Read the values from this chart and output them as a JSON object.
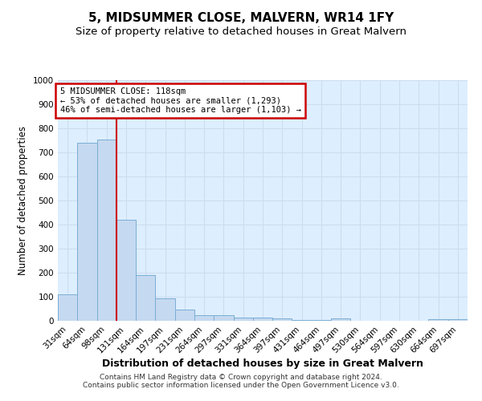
{
  "title": "5, MIDSUMMER CLOSE, MALVERN, WR14 1FY",
  "subtitle": "Size of property relative to detached houses in Great Malvern",
  "xlabel": "Distribution of detached houses by size in Great Malvern",
  "ylabel": "Number of detached properties",
  "categories": [
    "31sqm",
    "64sqm",
    "98sqm",
    "131sqm",
    "164sqm",
    "197sqm",
    "231sqm",
    "264sqm",
    "297sqm",
    "331sqm",
    "364sqm",
    "397sqm",
    "431sqm",
    "464sqm",
    "497sqm",
    "530sqm",
    "564sqm",
    "597sqm",
    "630sqm",
    "664sqm",
    "697sqm"
  ],
  "values": [
    110,
    740,
    755,
    420,
    190,
    95,
    46,
    22,
    22,
    15,
    15,
    10,
    5,
    5,
    10,
    0,
    0,
    0,
    0,
    8,
    8
  ],
  "bar_color": "#c5d9f0",
  "bar_edge_color": "#7aadd4",
  "background_color": "#ddeeff",
  "grid_color": "#ccddee",
  "vline_x": 2.5,
  "vline_color": "#cc0000",
  "annotation_text": "5 MIDSUMMER CLOSE: 118sqm\n← 53% of detached houses are smaller (1,293)\n46% of semi-detached houses are larger (1,103) →",
  "annotation_box_color": "#ffffff",
  "annotation_border_color": "#cc0000",
  "ylim": [
    0,
    1000
  ],
  "yticks": [
    0,
    100,
    200,
    300,
    400,
    500,
    600,
    700,
    800,
    900,
    1000
  ],
  "footer": "Contains HM Land Registry data © Crown copyright and database right 2024.\nContains public sector information licensed under the Open Government Licence v3.0.",
  "title_fontsize": 11,
  "subtitle_fontsize": 9.5,
  "xlabel_fontsize": 9,
  "ylabel_fontsize": 8.5,
  "tick_fontsize": 7.5,
  "annotation_fontsize": 7.5,
  "footer_fontsize": 6.5
}
